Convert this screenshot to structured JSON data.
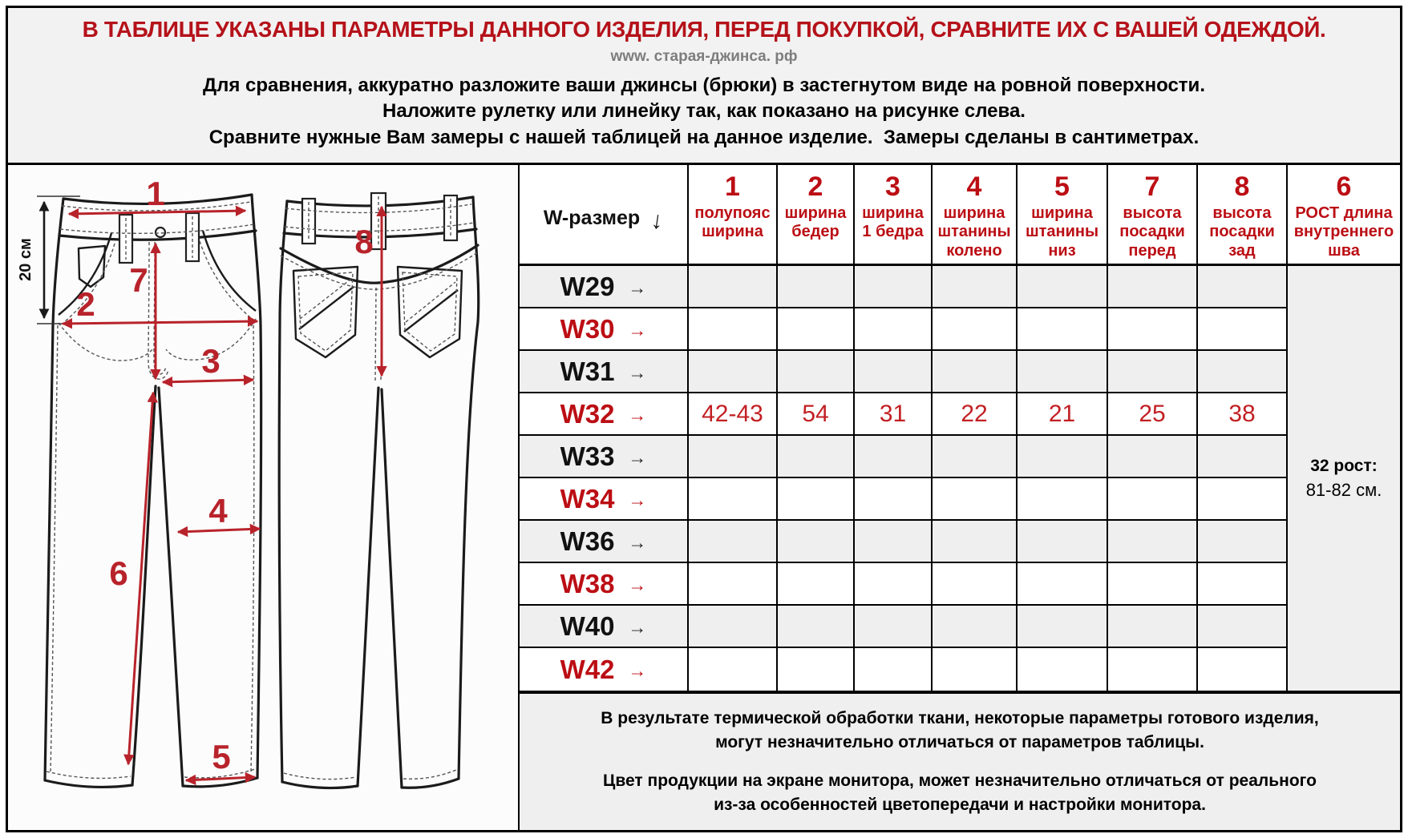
{
  "header": {
    "title_red": "В ТАБЛИЦЕ УКАЗАНЫ ПАРАМЕТРЫ ДАННОГО ИЗДЕЛИЯ, ПЕРЕД ПОКУПКОЙ, СРАВНИТЕ ИХ С ВАШЕЙ ОДЕЖДОЙ.",
    "website": "www. старая-джинса. рф",
    "instructions": [
      "Для сравнения, аккуратно разложите ваши джинсы (брюки) в застегнутом виде на ровной поверхности.",
      "Наложите рулетку или линейку так, как показано на рисунке слева.",
      "Сравните нужные Вам замеры с нашей таблицей на данное изделие.  Замеры сделаны в сантиметрах."
    ]
  },
  "diagram": {
    "ruler_label": "20 см",
    "measures": {
      "waist": "1",
      "hips": "2",
      "thigh": "3",
      "knee": "4",
      "leg_opening": "5",
      "inseam": "6",
      "front_rise": "7",
      "back_rise": "8"
    }
  },
  "table": {
    "size_header": "W-размер",
    "size_header_arrow": "↓",
    "row_arrow": "→",
    "columns": [
      {
        "num": "1",
        "label": "полупояс\nширина"
      },
      {
        "num": "2",
        "label": "ширина\nбедер"
      },
      {
        "num": "3",
        "label": "ширина\n1 бедра"
      },
      {
        "num": "4",
        "label": "ширина\nштанины\nколено"
      },
      {
        "num": "5",
        "label": "ширина\nштанины\nниз"
      },
      {
        "num": "7",
        "label": "высота\nпосадки\nперед"
      },
      {
        "num": "8",
        "label": "высота\nпосадки\nзад"
      },
      {
        "num": "6",
        "label": "РОСТ длина\nвнутреннего\nшва"
      }
    ],
    "rows": [
      {
        "size": "W29",
        "values": [
          "",
          "",
          "",
          "",
          "",
          "",
          ""
        ]
      },
      {
        "size": "W30",
        "values": [
          "",
          "",
          "",
          "",
          "",
          "",
          ""
        ]
      },
      {
        "size": "W31",
        "values": [
          "",
          "",
          "",
          "",
          "",
          "",
          ""
        ]
      },
      {
        "size": "W32",
        "values": [
          "42-43",
          "54",
          "31",
          "22",
          "21",
          "25",
          "38"
        ]
      },
      {
        "size": "W33",
        "values": [
          "",
          "",
          "",
          "",
          "",
          "",
          ""
        ]
      },
      {
        "size": "W34",
        "values": [
          "",
          "",
          "",
          "",
          "",
          "",
          ""
        ]
      },
      {
        "size": "W36",
        "values": [
          "",
          "",
          "",
          "",
          "",
          "",
          ""
        ]
      },
      {
        "size": "W38",
        "values": [
          "",
          "",
          "",
          "",
          "",
          "",
          ""
        ]
      },
      {
        "size": "W40",
        "values": [
          "",
          "",
          "",
          "",
          "",
          "",
          ""
        ]
      },
      {
        "size": "W42",
        "values": [
          "",
          "",
          "",
          "",
          "",
          "",
          ""
        ]
      }
    ],
    "inseam_cell": {
      "line1": "32 рост:",
      "line2": "81-82 см."
    }
  },
  "footer_notes": {
    "p1_line1": "В результате термической обработки ткани, некоторые параметры готового изделия,",
    "p1_line2": "могут незначительно отличаться от параметров таблицы.",
    "p2_line1": "Цвет продукции на экране монитора, может незначительно отличаться от реального",
    "p2_line2": "из-за особенностей цветопередачи и настройки монитора."
  },
  "colors": {
    "accent_red": "#b5121a",
    "table_red": "#bb0e14",
    "value_red": "#c22024",
    "arrow_red": "#b8232b",
    "row_shade": "#efefef",
    "site_gray": "#7d7d7d"
  }
}
